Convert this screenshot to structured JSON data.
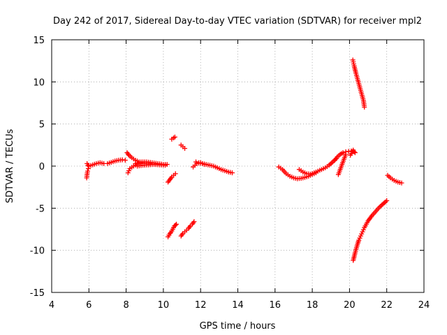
{
  "chart_data": {
    "type": "scatter",
    "title": "Day 242 of 2017, Sidereal Day-to-day VTEC variation (SDTVAR) for receiver mpl2",
    "xlabel": "GPS time / hours",
    "ylabel": "SDTVAR / TECUs",
    "xlim": [
      4,
      24
    ],
    "ylim": [
      -15,
      15
    ],
    "xticks": [
      4,
      6,
      8,
      10,
      12,
      14,
      16,
      18,
      20,
      22,
      24
    ],
    "yticks": [
      -15,
      -10,
      -5,
      0,
      5,
      10,
      15
    ],
    "xtick_labels": [
      "4",
      "6",
      "8",
      "10",
      "12",
      "14",
      "16",
      "18",
      "20",
      "22",
      "24"
    ],
    "ytick_labels": [
      "-15",
      "-10",
      "-5",
      "0",
      "5",
      "10",
      "15"
    ],
    "grid": true,
    "marker": "+",
    "color": "#ff0000",
    "segments": [
      {
        "x": [
          5.88,
          5.9,
          5.93,
          5.97,
          6.0
        ],
        "y": [
          -1.4,
          -1.0,
          -0.6,
          -0.3,
          0.0
        ]
      },
      {
        "x": [
          5.9,
          5.95
        ],
        "y": [
          0.3,
          0.1
        ]
      },
      {
        "x": [
          6.0,
          6.2,
          6.4,
          6.6,
          6.8
        ],
        "y": [
          0.0,
          0.15,
          0.3,
          0.4,
          0.3
        ]
      },
      {
        "x": [
          7.0,
          7.2,
          7.4,
          7.6,
          7.8,
          7.95
        ],
        "y": [
          0.3,
          0.45,
          0.6,
          0.7,
          0.75,
          0.7
        ]
      },
      {
        "x": [
          8.05,
          8.15,
          8.3,
          8.5,
          8.7,
          8.9,
          9.1,
          9.3
        ],
        "y": [
          1.6,
          1.3,
          1.0,
          0.7,
          0.5,
          0.35,
          0.3,
          0.3
        ]
      },
      {
        "x": [
          8.1,
          8.2,
          8.4,
          8.6,
          8.8
        ],
        "y": [
          -0.8,
          -0.3,
          0.0,
          0.2,
          0.3
        ]
      },
      {
        "x": [
          8.5,
          8.8,
          9.1,
          9.4,
          9.7,
          10.0,
          10.2
        ],
        "y": [
          0.3,
          0.5,
          0.5,
          0.4,
          0.3,
          0.2,
          0.2
        ]
      },
      {
        "x": [
          8.6,
          8.9,
          9.2,
          9.5,
          9.8,
          10.1
        ],
        "y": [
          0.0,
          0.1,
          0.15,
          0.2,
          0.15,
          0.1
        ]
      },
      {
        "x": [
          10.25,
          10.35,
          10.45,
          10.55,
          10.65
        ],
        "y": [
          -1.9,
          -1.6,
          -1.3,
          -1.1,
          -0.9
        ]
      },
      {
        "x": [
          10.45,
          10.55,
          10.62
        ],
        "y": [
          3.2,
          3.35,
          3.45
        ]
      },
      {
        "x": [
          10.25,
          10.3,
          10.35,
          10.4,
          10.45,
          10.5,
          10.55,
          10.6,
          10.65,
          10.7
        ],
        "y": [
          -8.4,
          -8.2,
          -8.0,
          -7.9,
          -7.7,
          -7.5,
          -7.3,
          -7.1,
          -7.0,
          -6.9
        ]
      },
      {
        "x": [
          10.95,
          11.05,
          11.15
        ],
        "y": [
          2.5,
          2.3,
          2.1
        ]
      },
      {
        "x": [
          10.95,
          11.05,
          11.15,
          11.25,
          11.35,
          11.45,
          11.55,
          11.65
        ],
        "y": [
          -8.3,
          -8.0,
          -7.8,
          -7.6,
          -7.4,
          -7.1,
          -6.9,
          -6.6
        ]
      },
      {
        "x": [
          11.6,
          11.7,
          11.8,
          11.9,
          12.0,
          12.1,
          12.2
        ],
        "y": [
          -0.1,
          0.1,
          0.3,
          0.35,
          0.4,
          0.3,
          0.2
        ]
      },
      {
        "x": [
          11.75,
          11.9,
          12.1,
          12.3,
          12.5,
          12.7,
          12.9,
          13.1,
          13.3,
          13.5,
          13.7
        ],
        "y": [
          0.5,
          0.4,
          0.3,
          0.2,
          0.1,
          0.0,
          -0.2,
          -0.4,
          -0.55,
          -0.7,
          -0.8
        ]
      },
      {
        "x": [
          16.2,
          16.4,
          16.6,
          16.8,
          17.0,
          17.2,
          17.4,
          17.6,
          17.8,
          18.0,
          18.2
        ],
        "y": [
          -0.1,
          -0.4,
          -0.9,
          -1.2,
          -1.4,
          -1.5,
          -1.45,
          -1.35,
          -1.2,
          -1.0,
          -0.8
        ]
      },
      {
        "x": [
          17.3,
          17.5,
          17.7,
          17.9,
          18.1,
          18.3,
          18.5,
          18.7,
          18.9,
          19.1,
          19.3
        ],
        "y": [
          -0.4,
          -0.7,
          -0.9,
          -0.95,
          -0.8,
          -0.6,
          -0.4,
          -0.2,
          0.1,
          0.5,
          0.9
        ]
      },
      {
        "x": [
          19.2,
          19.35,
          19.5,
          19.65,
          19.8,
          19.95,
          20.1,
          20.2
        ],
        "y": [
          0.7,
          1.1,
          1.4,
          1.6,
          1.7,
          1.75,
          1.8,
          1.9
        ]
      },
      {
        "x": [
          19.4,
          19.5,
          19.6,
          19.7,
          19.8
        ],
        "y": [
          -1.0,
          -0.4,
          0.2,
          0.8,
          1.4
        ]
      },
      {
        "x": [
          20.05,
          20.1,
          20.15,
          20.2,
          20.25,
          20.3
        ],
        "y": [
          1.3,
          1.5,
          1.7,
          1.8,
          1.7,
          1.6
        ]
      },
      {
        "x": [
          20.18,
          20.25,
          20.35,
          20.45,
          20.55,
          20.65,
          20.75,
          20.8
        ],
        "y": [
          12.6,
          11.9,
          11.0,
          10.2,
          9.4,
          8.6,
          7.8,
          7.0
        ]
      },
      {
        "x": [
          20.2,
          20.3,
          20.4,
          20.5,
          20.6,
          20.7,
          20.8,
          20.9,
          21.0,
          21.2,
          21.4,
          21.6,
          21.8,
          22.0
        ],
        "y": [
          -11.2,
          -10.3,
          -9.5,
          -8.8,
          -8.3,
          -7.8,
          -7.3,
          -6.9,
          -6.5,
          -5.9,
          -5.4,
          -4.9,
          -4.5,
          -4.1
        ]
      },
      {
        "x": [
          22.05,
          22.2,
          22.4,
          22.6,
          22.8
        ],
        "y": [
          -1.1,
          -1.4,
          -1.7,
          -1.9,
          -2.0
        ]
      }
    ]
  }
}
